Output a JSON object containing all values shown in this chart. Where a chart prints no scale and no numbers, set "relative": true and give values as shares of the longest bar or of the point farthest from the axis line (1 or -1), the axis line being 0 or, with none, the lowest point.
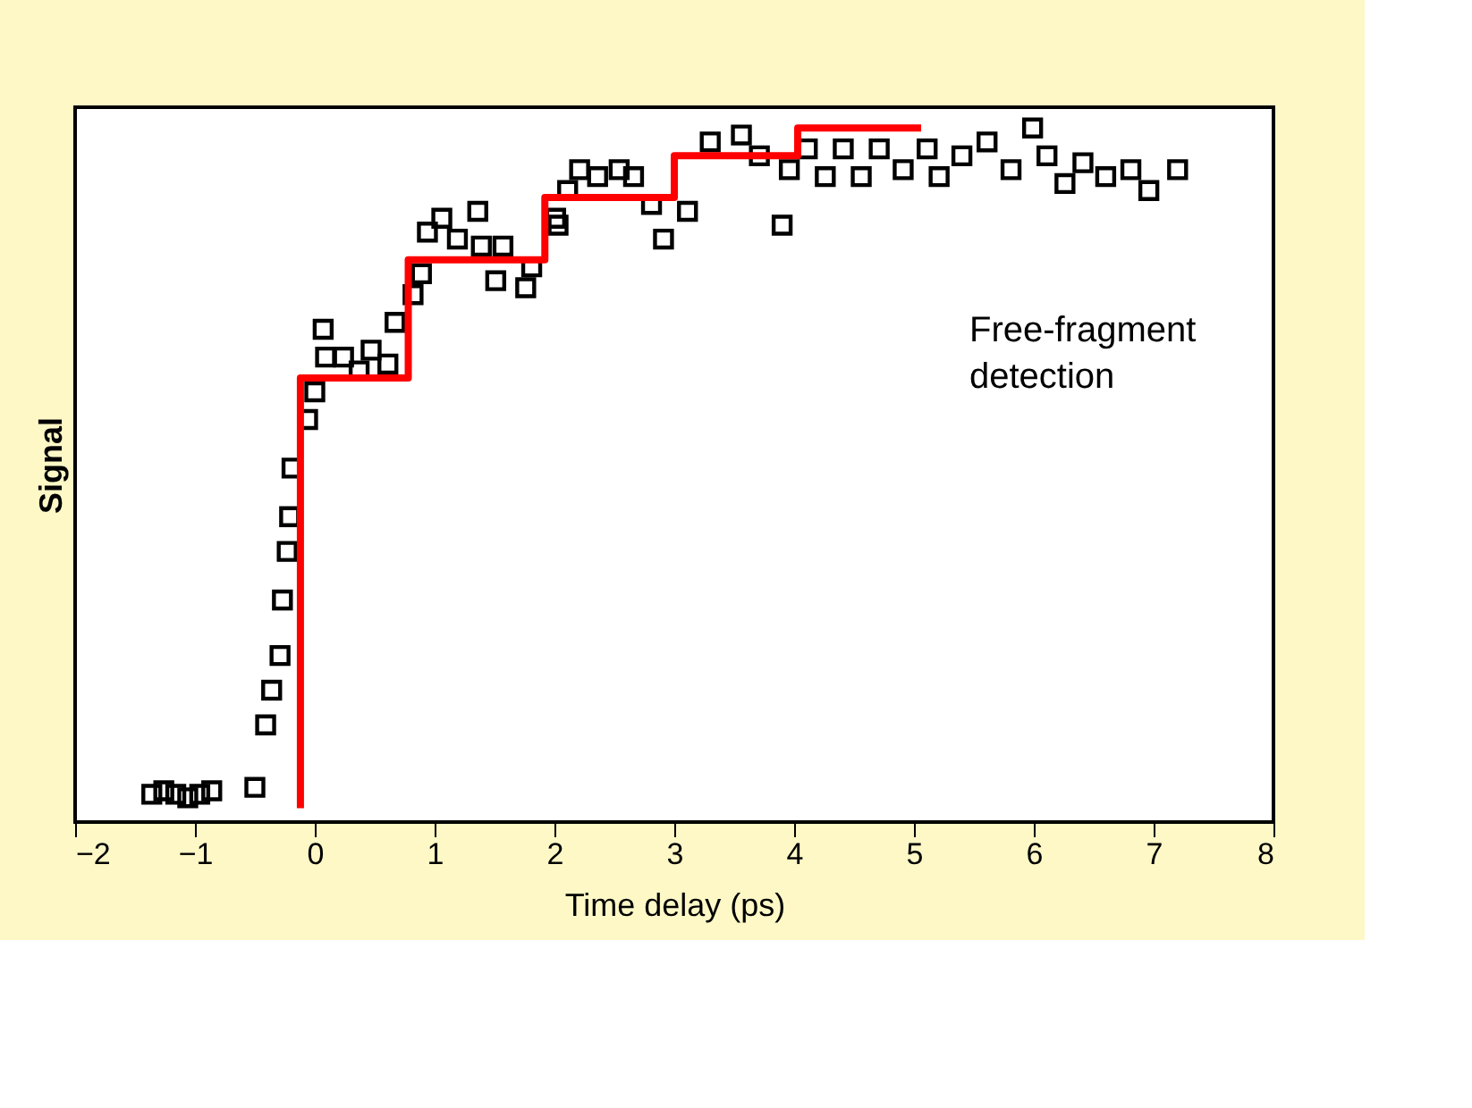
{
  "chart_data": {
    "type": "scatter",
    "xlabel": "Time delay (ps)",
    "ylabel": "Signal",
    "relative": true,
    "xlim": [
      -2,
      8
    ],
    "xticks": [
      -2,
      -1,
      0,
      1,
      2,
      3,
      4,
      5,
      6,
      7,
      8
    ],
    "marker": "square",
    "grid": false,
    "annotations": [
      "Free-fragment detection"
    ],
    "series": [
      {
        "color": "#000000",
        "x": [
          -1.36,
          -1.26,
          -1.16,
          -1.06,
          -0.96,
          -0.86,
          -0.5,
          -0.41,
          -0.36,
          -0.29,
          -0.27,
          -0.23,
          -0.21,
          -0.19,
          -0.06,
          0.0,
          0.07,
          0.09,
          0.24,
          0.37,
          0.47,
          0.61,
          0.67,
          0.82,
          0.89,
          0.94,
          1.06,
          1.19,
          1.36,
          1.39,
          1.51,
          1.57,
          1.76,
          1.81,
          2.01,
          2.03,
          2.11,
          2.21,
          2.36,
          2.54,
          2.66,
          2.81,
          2.91,
          3.11,
          3.3,
          3.56,
          3.71,
          3.9,
          3.96,
          4.11,
          4.26,
          4.41,
          4.56,
          4.71,
          4.91,
          5.11,
          5.21,
          5.4,
          5.61,
          5.81,
          5.99,
          6.11,
          6.26,
          6.41,
          6.6,
          6.81,
          6.96,
          7.2
        ],
        "values": [
          0.04,
          0.045,
          0.04,
          0.035,
          0.04,
          0.045,
          0.05,
          0.14,
          0.19,
          0.24,
          0.32,
          0.39,
          0.44,
          0.51,
          0.58,
          0.62,
          0.71,
          0.67,
          0.67,
          0.65,
          0.68,
          0.66,
          0.72,
          0.76,
          0.79,
          0.85,
          0.87,
          0.84,
          0.88,
          0.83,
          0.78,
          0.83,
          0.77,
          0.8,
          0.87,
          0.86,
          0.91,
          0.94,
          0.93,
          0.94,
          0.93,
          0.89,
          0.84,
          0.88,
          0.98,
          0.99,
          0.96,
          0.86,
          0.94,
          0.97,
          0.93,
          0.97,
          0.93,
          0.97,
          0.94,
          0.97,
          0.93,
          0.96,
          0.98,
          0.94,
          1.0,
          0.96,
          0.92,
          0.95,
          0.93,
          0.94,
          0.91,
          0.94
        ]
      },
      {
        "type": "line",
        "color": "#ff0000",
        "marker": "none",
        "line_style": "solid",
        "x": [
          -0.12,
          -0.12,
          0.78,
          0.78,
          1.92,
          1.92,
          3.0,
          3.0,
          4.03,
          4.03,
          5.06
        ],
        "values": [
          0.02,
          0.64,
          0.64,
          0.81,
          0.81,
          0.9,
          0.9,
          0.96,
          0.96,
          1.0,
          1.0
        ]
      }
    ]
  }
}
